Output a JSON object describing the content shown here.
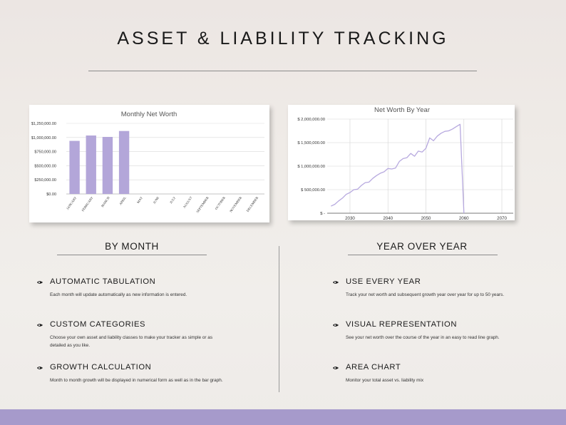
{
  "page": {
    "title": "ASSET & LIABILITY TRACKING",
    "accent_color": "#b3a6d9",
    "line_color": "#b7a9df",
    "footer_color": "#a69acb"
  },
  "columns": {
    "left_heading": "BY MONTH",
    "right_heading": "YEAR OVER YEAR"
  },
  "features": [
    {
      "icon": "ink-nib-icon",
      "heading": "AUTOMATIC TABULATION",
      "description": "Each month will update automatically as new information is entered."
    },
    {
      "icon": "ink-nib-icon",
      "heading": "CUSTOM CATEGORIES",
      "description": "Choose your own asset and liability classes to make your tracker as simple or as detailed as you like."
    },
    {
      "icon": "ink-nib-icon",
      "heading": "GROWTH CALCULATION",
      "description": "Month to month growth will be displayed in numerical form as well as in the bar graph."
    },
    {
      "icon": "ink-nib-icon",
      "heading": "USE EVERY YEAR",
      "description": "Track your net worth and subsequent growth year over year for up to 50 years."
    },
    {
      "icon": "ink-nib-icon",
      "heading": "VISUAL REPRESENTATION",
      "description": "See your net worth over the course of the year in an easy to read line graph."
    },
    {
      "icon": "ink-nib-icon",
      "heading": "AREA CHART",
      "description": "Monitor your total asset vs. liability mix"
    }
  ],
  "chart_data": [
    {
      "type": "bar",
      "title": "Monthly Net Worth",
      "categories": [
        "JANUARY",
        "FEBRUARY",
        "MARCH",
        "APRIL",
        "MAY",
        "JUNE",
        "JULY",
        "AUGUST",
        "SEPTEMBER",
        "OCTOBER",
        "NOVEMBER",
        "DECEMBER"
      ],
      "values": [
        940000,
        1035000,
        1010000,
        1115000,
        0,
        0,
        0,
        0,
        0,
        0,
        0,
        0
      ],
      "ylim": [
        0,
        1250000
      ],
      "y_ticks": [
        0,
        250000,
        500000,
        750000,
        1000000,
        1250000
      ],
      "y_tick_labels": [
        "$0.00",
        "$250,000.00",
        "$500,000.00",
        "$750,000.00",
        "$1,000,000.00",
        "$1,250,000.00"
      ],
      "grid": "horizontal",
      "color": "#b3a6d9"
    },
    {
      "type": "line",
      "title": "Net Worth By Year",
      "x": [
        2025,
        2026,
        2027,
        2028,
        2029,
        2030,
        2031,
        2032,
        2033,
        2034,
        2035,
        2036,
        2037,
        2038,
        2039,
        2040,
        2041,
        2042,
        2043,
        2044,
        2045,
        2046,
        2047,
        2048,
        2049,
        2050,
        2051,
        2052,
        2053,
        2054,
        2055,
        2056,
        2057,
        2058,
        2059,
        2060
      ],
      "y": [
        150000,
        190000,
        260000,
        320000,
        400000,
        440000,
        500000,
        510000,
        590000,
        650000,
        660000,
        740000,
        800000,
        850000,
        880000,
        950000,
        940000,
        960000,
        1100000,
        1160000,
        1180000,
        1270000,
        1210000,
        1320000,
        1300000,
        1380000,
        1600000,
        1540000,
        1640000,
        1700000,
        1740000,
        1750000,
        1790000,
        1840000,
        1890000,
        0
      ],
      "xlim": [
        2024,
        2073
      ],
      "x_ticks": [
        2030,
        2040,
        2050,
        2060,
        2070
      ],
      "ylim": [
        0,
        2000000
      ],
      "y_ticks": [
        0,
        500000,
        1000000,
        1500000,
        2000000
      ],
      "y_tick_labels": [
        "$ -",
        "$ 500,000.00",
        "$ 1,000,000.00",
        "$ 1,500,000.00",
        "$ 2,000,000.00"
      ],
      "grid": "both",
      "color": "#b7a9df"
    }
  ]
}
